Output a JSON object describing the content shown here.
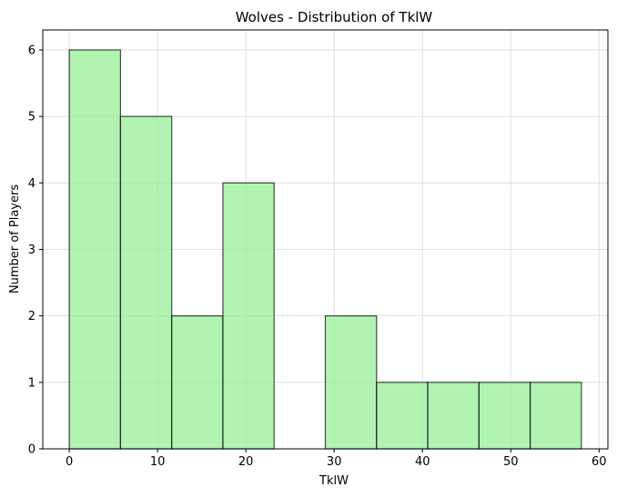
{
  "chart_data": {
    "type": "bar",
    "subtype": "histogram",
    "title": "Wolves - Distribution of TklW",
    "xlabel": "TklW",
    "ylabel": "Number of Players",
    "xlim": [
      -3,
      61
    ],
    "ylim": [
      0,
      6.3
    ],
    "xticks": [
      0,
      10,
      20,
      30,
      40,
      50,
      60
    ],
    "yticks": [
      0,
      1,
      2,
      3,
      4,
      5,
      6
    ],
    "grid": true,
    "bins": [
      {
        "start": 0.0,
        "end": 5.8,
        "count": 6
      },
      {
        "start": 5.8,
        "end": 11.6,
        "count": 5
      },
      {
        "start": 11.6,
        "end": 17.4,
        "count": 2
      },
      {
        "start": 17.4,
        "end": 23.2,
        "count": 4
      },
      {
        "start": 23.2,
        "end": 29.0,
        "count": 0
      },
      {
        "start": 29.0,
        "end": 34.8,
        "count": 2
      },
      {
        "start": 34.8,
        "end": 40.6,
        "count": 1
      },
      {
        "start": 40.6,
        "end": 46.4,
        "count": 1
      },
      {
        "start": 46.4,
        "end": 52.2,
        "count": 1
      },
      {
        "start": 52.2,
        "end": 58.0,
        "count": 1
      }
    ],
    "colors": {
      "bar_fill": "#90EE90",
      "bar_edge": "#000000",
      "grid": "#d9d9d9",
      "axis": "#000000"
    }
  }
}
